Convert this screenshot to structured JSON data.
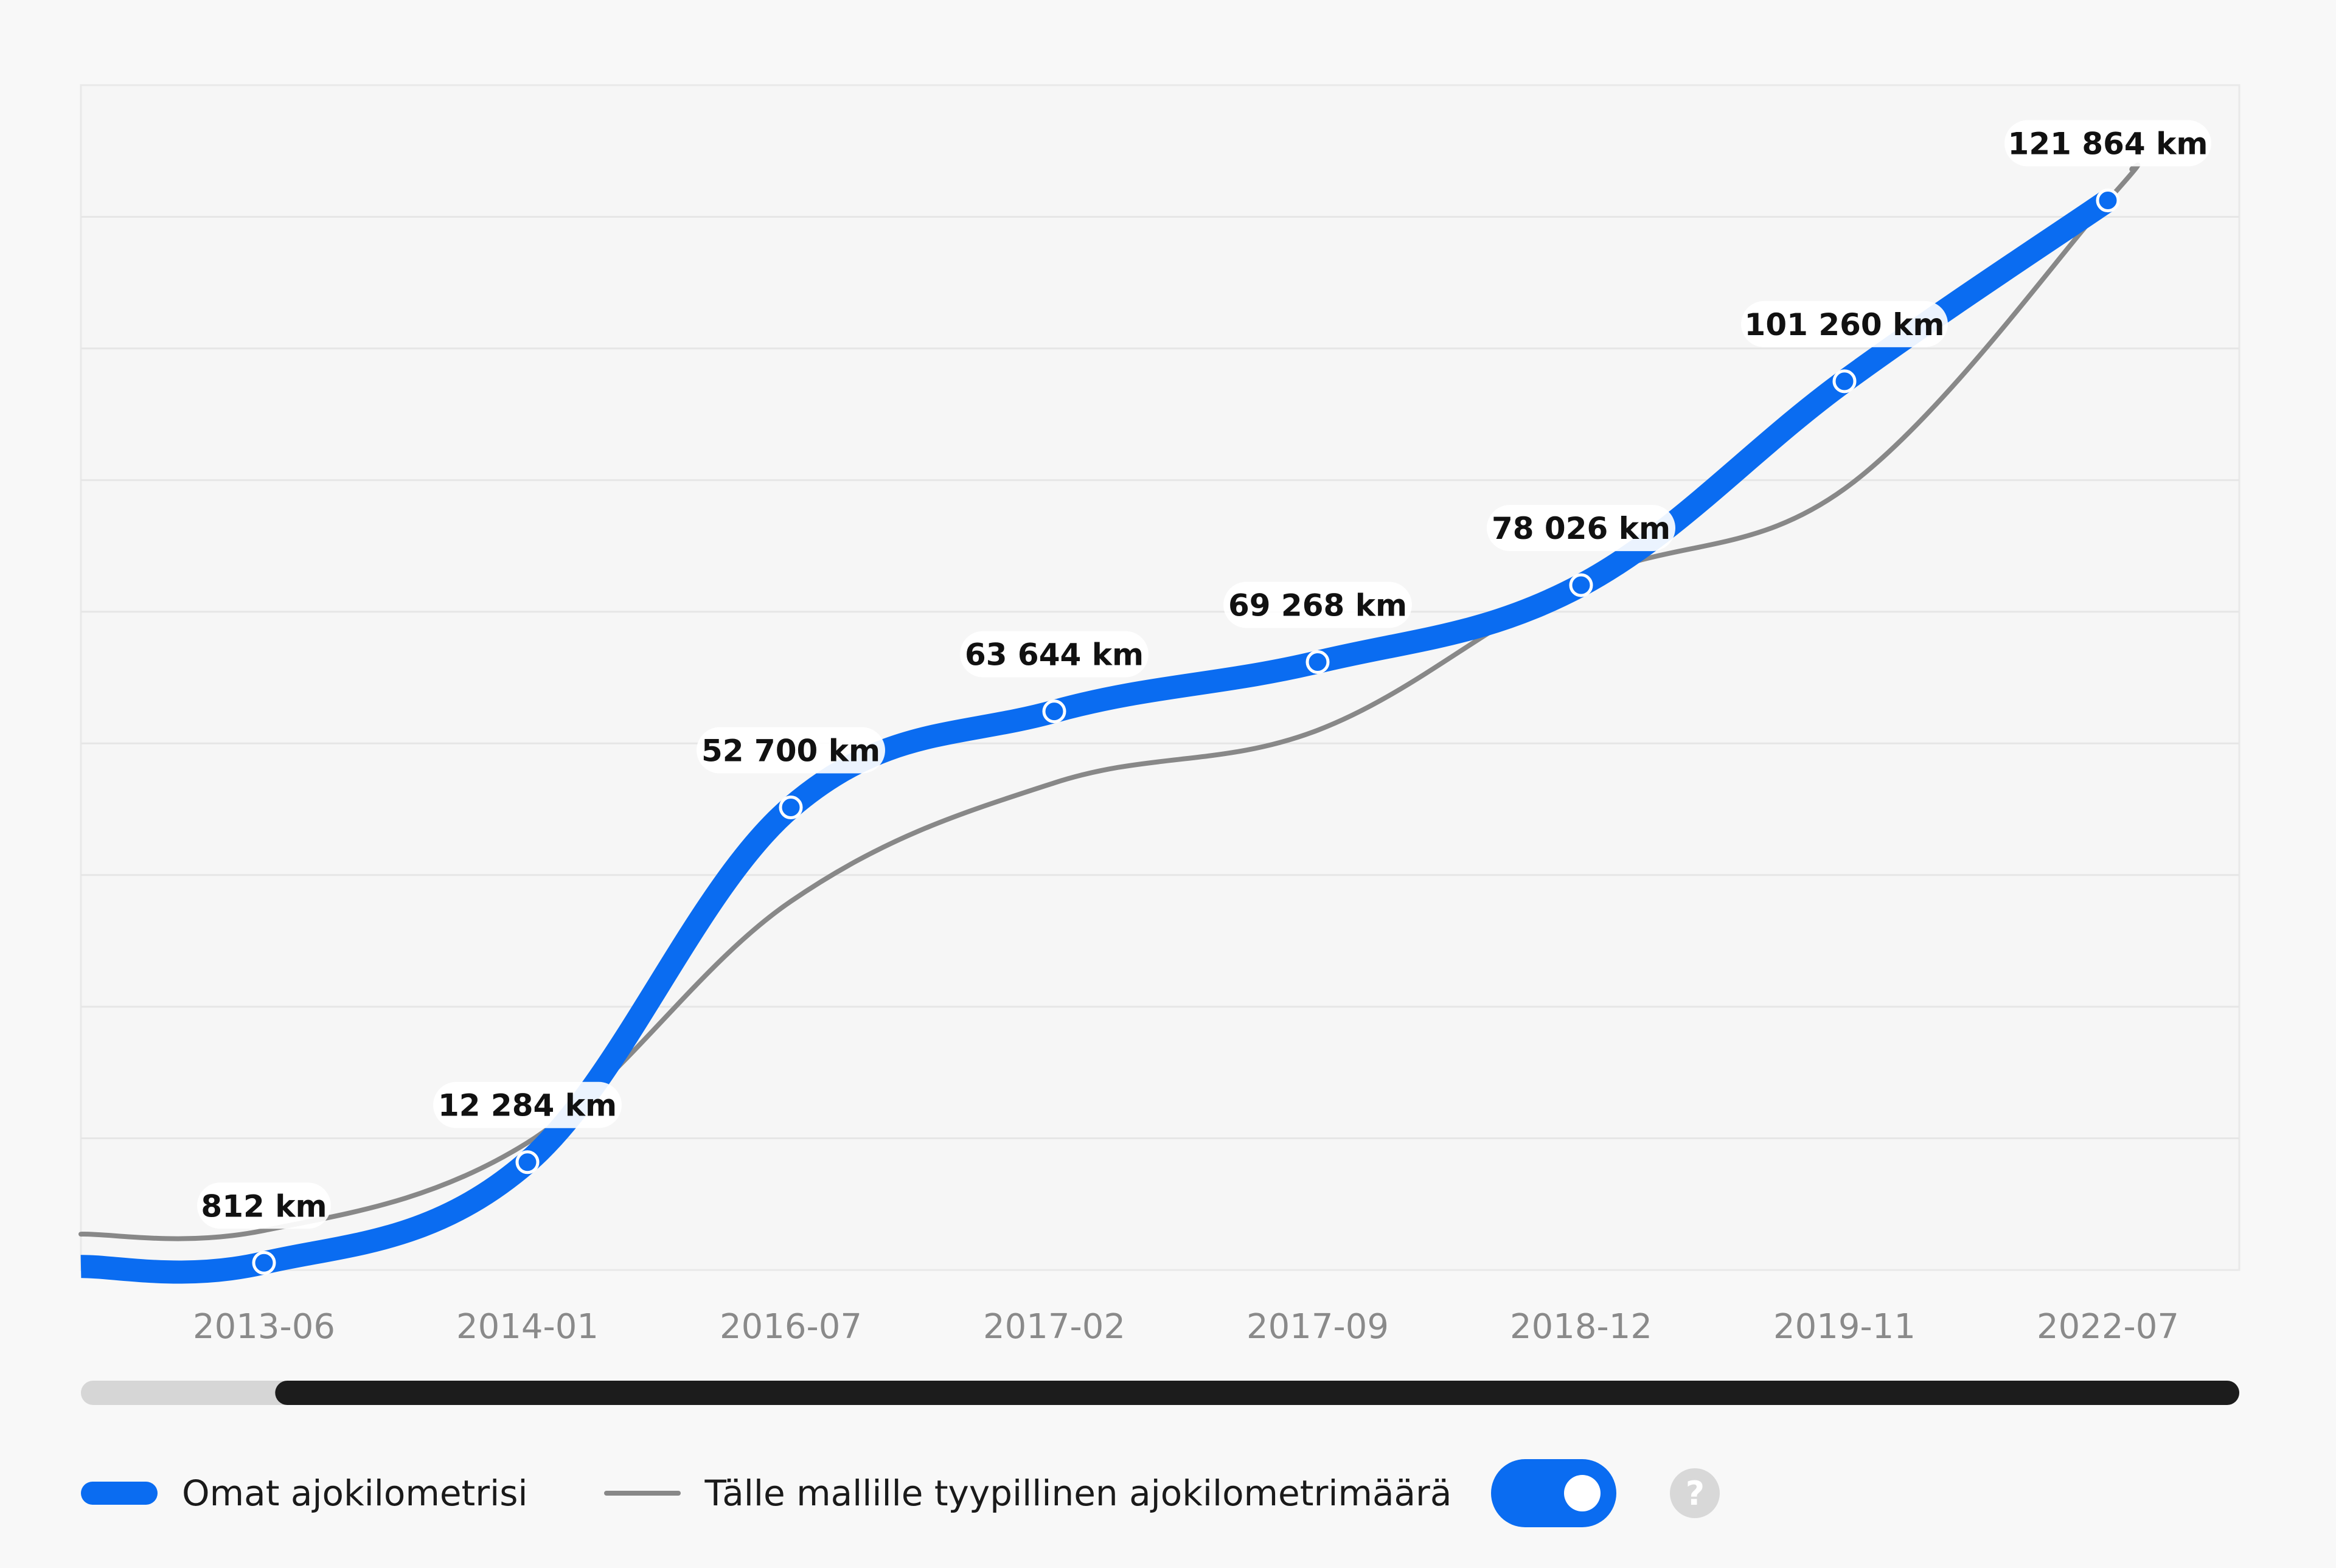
{
  "chart_data": {
    "type": "line",
    "x": [
      "2013-06",
      "2014-01",
      "2016-07",
      "2017-02",
      "2017-09",
      "2018-12",
      "2019-11",
      "2022-07"
    ],
    "series": [
      {
        "name": "Omat ajokilometrisi",
        "values": [
          812,
          12284,
          52700,
          63644,
          69268,
          78026,
          101260,
          121864
        ],
        "labels": [
          "812 km",
          "12 284 km",
          "52 700 km",
          "63 644 km",
          "69 268 km",
          "78 026 km",
          "101 260 km",
          "121 864 km"
        ],
        "color": "#0a6cf1"
      },
      {
        "name": "Tälle mallille tyypillinen ajokilometrimäärä",
        "values": [
          4500,
          14500,
          42000,
          55500,
          61500,
          78500,
          89000,
          121864
        ],
        "color": "#888888"
      }
    ],
    "ylim": [
      0,
      135000
    ],
    "grid": true,
    "legend": "bottom-left",
    "scrollbar_visible_fraction": 0.91
  },
  "legend": {
    "primary_label": "Omat ajokilometrisi",
    "secondary_label": "Tälle mallille tyypillinen ajokilometrimäärä",
    "toggle_state": "on",
    "help_glyph": "?"
  }
}
